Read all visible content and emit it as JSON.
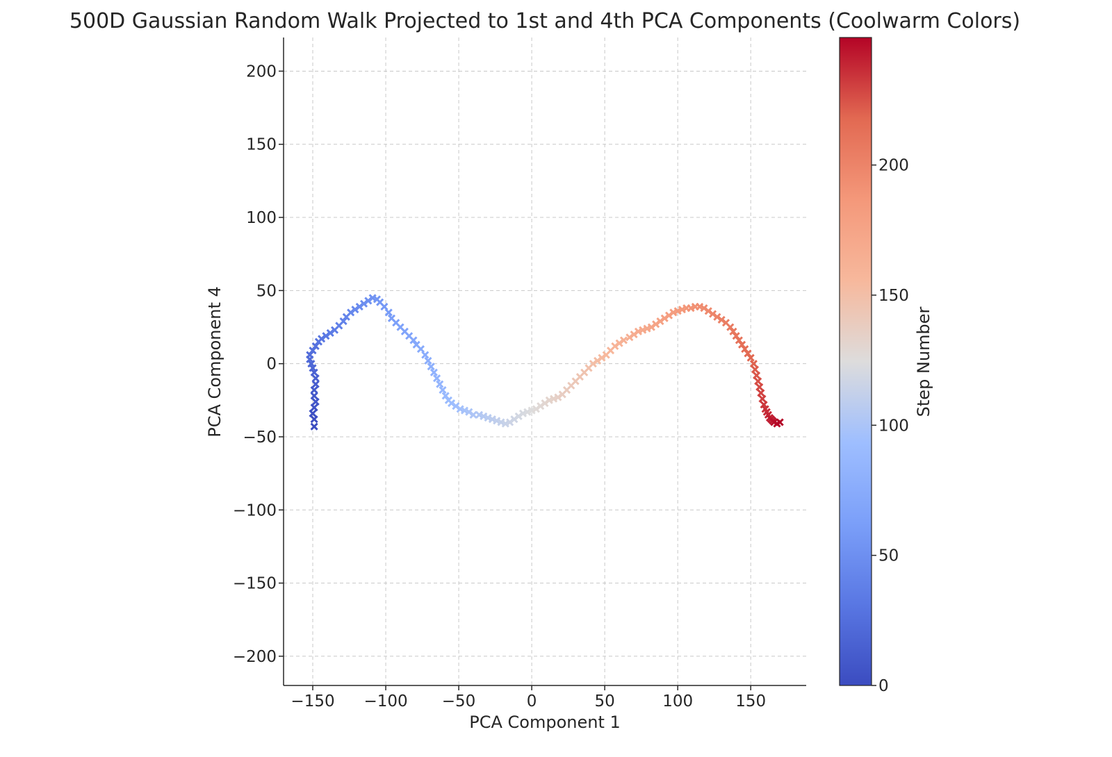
{
  "chart_data": {
    "type": "scatter",
    "title": "500D Gaussian Random Walk Projected to 1st and 4th PCA Components (Coolwarm Colors)",
    "xlabel": "PCA Component 1",
    "ylabel": "PCA Component 4",
    "xlim": [
      -170,
      188
    ],
    "ylim": [
      -220,
      223
    ],
    "xticks": [
      -150,
      -100,
      -50,
      0,
      50,
      100,
      150
    ],
    "yticks": [
      -200,
      -150,
      -100,
      -50,
      0,
      50,
      100,
      150,
      200
    ],
    "grid": true,
    "marker": "x",
    "colormap": "coolwarm",
    "colorbar": {
      "label": "Step Number",
      "range": [
        0,
        249
      ],
      "ticks": [
        0,
        50,
        100,
        150,
        200
      ]
    },
    "series": [
      {
        "color_by": "step",
        "x": [
          -149,
          -149,
          -150,
          -149,
          -148,
          -149,
          -149,
          -148,
          -148,
          -149,
          -150,
          -151,
          -152,
          -152,
          -150,
          -148,
          -146,
          -144,
          -141,
          -138,
          -135,
          -132,
          -129,
          -127,
          -124,
          -121,
          -118,
          -115,
          -112,
          -109,
          -106,
          -104,
          -101,
          -98,
          -96,
          -93,
          -90,
          -87,
          -84,
          -81,
          -79,
          -76,
          -73,
          -71,
          -69,
          -67,
          -65,
          -63,
          -61,
          -59,
          -57,
          -55,
          -52,
          -49,
          -46,
          -43,
          -40,
          -36,
          -33,
          -30,
          -27,
          -24,
          -21,
          -18,
          -15,
          -12,
          -9,
          -6,
          -3,
          0,
          3,
          6,
          9,
          12,
          15,
          18,
          21,
          24,
          27,
          30,
          33,
          36,
          39,
          42,
          45,
          48,
          51,
          54,
          57,
          60,
          63,
          67,
          70,
          73,
          76,
          79,
          82,
          85,
          88,
          91,
          94,
          97,
          100,
          103,
          106,
          109,
          112,
          115,
          118,
          121,
          124,
          127,
          130,
          133,
          136,
          138,
          140,
          142,
          144,
          146,
          148,
          150,
          152,
          153,
          154,
          155,
          156,
          157,
          158,
          159,
          160,
          161,
          162,
          163,
          164,
          165,
          166,
          168,
          170
        ],
        "y": [
          -43,
          -38,
          -34,
          -30,
          -26,
          -22,
          -18,
          -14,
          -10,
          -6,
          -3,
          0,
          3,
          6,
          9,
          12,
          15,
          17,
          19,
          21,
          23,
          26,
          29,
          32,
          35,
          37,
          39,
          41,
          43,
          45,
          44,
          42,
          39,
          35,
          31,
          28,
          25,
          22,
          19,
          16,
          13,
          10,
          6,
          2,
          -2,
          -6,
          -10,
          -14,
          -18,
          -22,
          -25,
          -27,
          -29,
          -31,
          -32,
          -33,
          -35,
          -35,
          -36,
          -37,
          -38,
          -39,
          -40,
          -41,
          -40,
          -38,
          -36,
          -34,
          -33,
          -32,
          -31,
          -29,
          -27,
          -25,
          -24,
          -23,
          -21,
          -18,
          -15,
          -12,
          -9,
          -6,
          -3,
          0,
          2,
          4,
          6,
          9,
          12,
          14,
          16,
          18,
          20,
          22,
          23,
          24,
          25,
          27,
          29,
          31,
          33,
          35,
          36,
          37,
          38,
          38,
          39,
          39,
          38,
          36,
          34,
          32,
          30,
          28,
          25,
          22,
          19,
          16,
          13,
          10,
          7,
          4,
          0,
          -4,
          -8,
          -12,
          -16,
          -20,
          -24,
          -28,
          -31,
          -33,
          -35,
          -37,
          -38,
          -39,
          -40,
          -41,
          -40
        ]
      }
    ]
  }
}
